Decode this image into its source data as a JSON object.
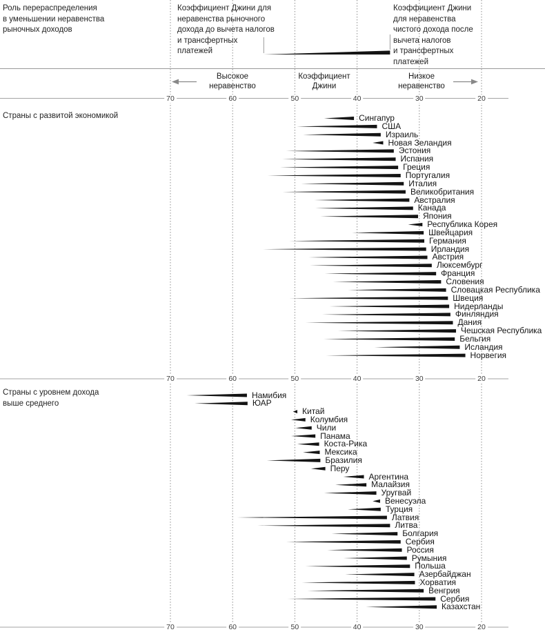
{
  "header": {
    "left": "Роль перераспределения\nв уменьшении неравенства\nрыночных доходов",
    "legend_market": "Коэффициент Джини для\nнеравенства рыночного\nдохода до вычета налогов\nи трансфертных\nплатежей",
    "legend_net": "Коэффициент Джини\nдля неравенства\nчистого дохода после\nвычета налогов\nи трансфертных\nплатежей"
  },
  "axis_band": {
    "high": "Высокое\nнеравенство",
    "center": "Коэффициент\nДжини",
    "low": "Низкое\nнеравенство"
  },
  "chart_data": {
    "type": "bar",
    "variant": "range-wedge: thin tip = market-income Gini (before taxes/transfers), thick end = net-income Gini (after taxes/transfers); horizontal axis reversed",
    "axis_ticks": [
      70,
      60,
      50,
      40,
      30,
      20
    ],
    "axis_range": [
      70,
      20
    ],
    "axis_reversed": true,
    "grid": "dotted-vertical",
    "legend_example": {
      "market": 55.0,
      "net": 34.7
    },
    "sections": [
      {
        "label": "Страны с развитой экономикой",
        "rows": [
          {
            "name": "Сингапур",
            "market": 45.3,
            "net": 40.5
          },
          {
            "name": "США",
            "market": 49.7,
            "net": 36.8
          },
          {
            "name": "Израиль",
            "market": 48.7,
            "net": 36.2
          },
          {
            "name": "Новая Зеландия",
            "market": 37.5,
            "net": 35.8
          },
          {
            "name": "Эстония",
            "market": 51.4,
            "net": 34.1
          },
          {
            "name": "Испания",
            "market": 52.0,
            "net": 33.8
          },
          {
            "name": "Греция",
            "market": 52.4,
            "net": 33.4
          },
          {
            "name": "Португалия",
            "market": 54.4,
            "net": 33.0
          },
          {
            "name": "Италия",
            "market": 49.0,
            "net": 32.5
          },
          {
            "name": "Великобритания",
            "market": 52.0,
            "net": 32.2
          },
          {
            "name": "Австралия",
            "market": 46.9,
            "net": 31.6
          },
          {
            "name": "Канада",
            "market": 46.7,
            "net": 31.0
          },
          {
            "name": "Япония",
            "market": 45.9,
            "net": 30.2
          },
          {
            "name": "Республика Корея",
            "market": 31.8,
            "net": 29.5
          },
          {
            "name": "Швейцария",
            "market": 40.8,
            "net": 29.3
          },
          {
            "name": "Германия",
            "market": 50.9,
            "net": 29.2
          },
          {
            "name": "Ирландия",
            "market": 55.2,
            "net": 28.9
          },
          {
            "name": "Австрия",
            "market": 47.8,
            "net": 28.7
          },
          {
            "name": "Люксембург",
            "market": 47.6,
            "net": 28.0
          },
          {
            "name": "Франция",
            "market": 45.2,
            "net": 27.3
          },
          {
            "name": "Словения",
            "market": 43.9,
            "net": 26.5
          },
          {
            "name": "Словацкая Республика",
            "market": 41.5,
            "net": 25.7
          },
          {
            "name": "Швеция",
            "market": 50.9,
            "net": 25.4
          },
          {
            "name": "Нидерланды",
            "market": 44.5,
            "net": 25.2
          },
          {
            "name": "Финляндия",
            "market": 45.6,
            "net": 25.0
          },
          {
            "name": "Дания",
            "market": 48.3,
            "net": 24.6
          },
          {
            "name": "Чешская Республика",
            "market": 43.1,
            "net": 24.1
          },
          {
            "name": "Бельгия",
            "market": 45.4,
            "net": 24.3
          },
          {
            "name": "Исландия",
            "market": 37.2,
            "net": 23.5
          },
          {
            "name": "Норвегия",
            "market": 45.0,
            "net": 22.6
          }
        ]
      },
      {
        "label": "Страны с уровнем дохода\nвыше среднего",
        "rows": [
          {
            "name": "Намибия",
            "market": 67.4,
            "net": 57.7
          },
          {
            "name": "ЮАР",
            "market": 66.1,
            "net": 57.6
          },
          {
            "name": "Китай",
            "market": 50.3,
            "net": 49.6
          },
          {
            "name": "Колумбия",
            "market": 50.6,
            "net": 48.3
          },
          {
            "name": "Чили",
            "market": 49.9,
            "net": 47.3
          },
          {
            "name": "Панама",
            "market": 50.6,
            "net": 46.7
          },
          {
            "name": "Коста-Рика",
            "market": 49.6,
            "net": 46.1
          },
          {
            "name": "Мексика",
            "market": 48.7,
            "net": 46.0
          },
          {
            "name": "Бразилия",
            "market": 54.5,
            "net": 45.9
          },
          {
            "name": "Перу",
            "market": 47.4,
            "net": 45.1
          },
          {
            "name": "Аргентина",
            "market": 42.2,
            "net": 38.9
          },
          {
            "name": "Малайзия",
            "market": 43.5,
            "net": 38.5
          },
          {
            "name": "Уругвай",
            "market": 45.3,
            "net": 36.9
          },
          {
            "name": "Венесуэла",
            "market": 37.5,
            "net": 36.3
          },
          {
            "name": "Турция",
            "market": 41.5,
            "net": 36.2
          },
          {
            "name": "Латвия",
            "market": 59.3,
            "net": 35.2
          },
          {
            "name": "Литва",
            "market": 56.0,
            "net": 34.7
          },
          {
            "name": "Болгария",
            "market": 44.1,
            "net": 33.5
          },
          {
            "name": "Сербия",
            "market": 51.4,
            "net": 33.0
          },
          {
            "name": "Россия",
            "market": 44.8,
            "net": 32.8
          },
          {
            "name": "Румыния",
            "market": 42.2,
            "net": 32.0
          },
          {
            "name": "Польша",
            "market": 48.3,
            "net": 31.5
          },
          {
            "name": "Азербайджан",
            "market": 41.9,
            "net": 30.8
          },
          {
            "name": "Хорватия",
            "market": 48.9,
            "net": 30.7
          },
          {
            "name": "Венгрия",
            "market": 48.0,
            "net": 29.3
          },
          {
            "name": "Сербия",
            "market": 51.2,
            "net": 27.4
          },
          {
            "name": "Казахстан",
            "market": 38.6,
            "net": 27.2
          }
        ]
      }
    ],
    "colors": {
      "wedge": "#141414",
      "axis_line": "#a3a3a3",
      "gridline": "#8c8c8c",
      "text": "#1a1a1a"
    }
  }
}
